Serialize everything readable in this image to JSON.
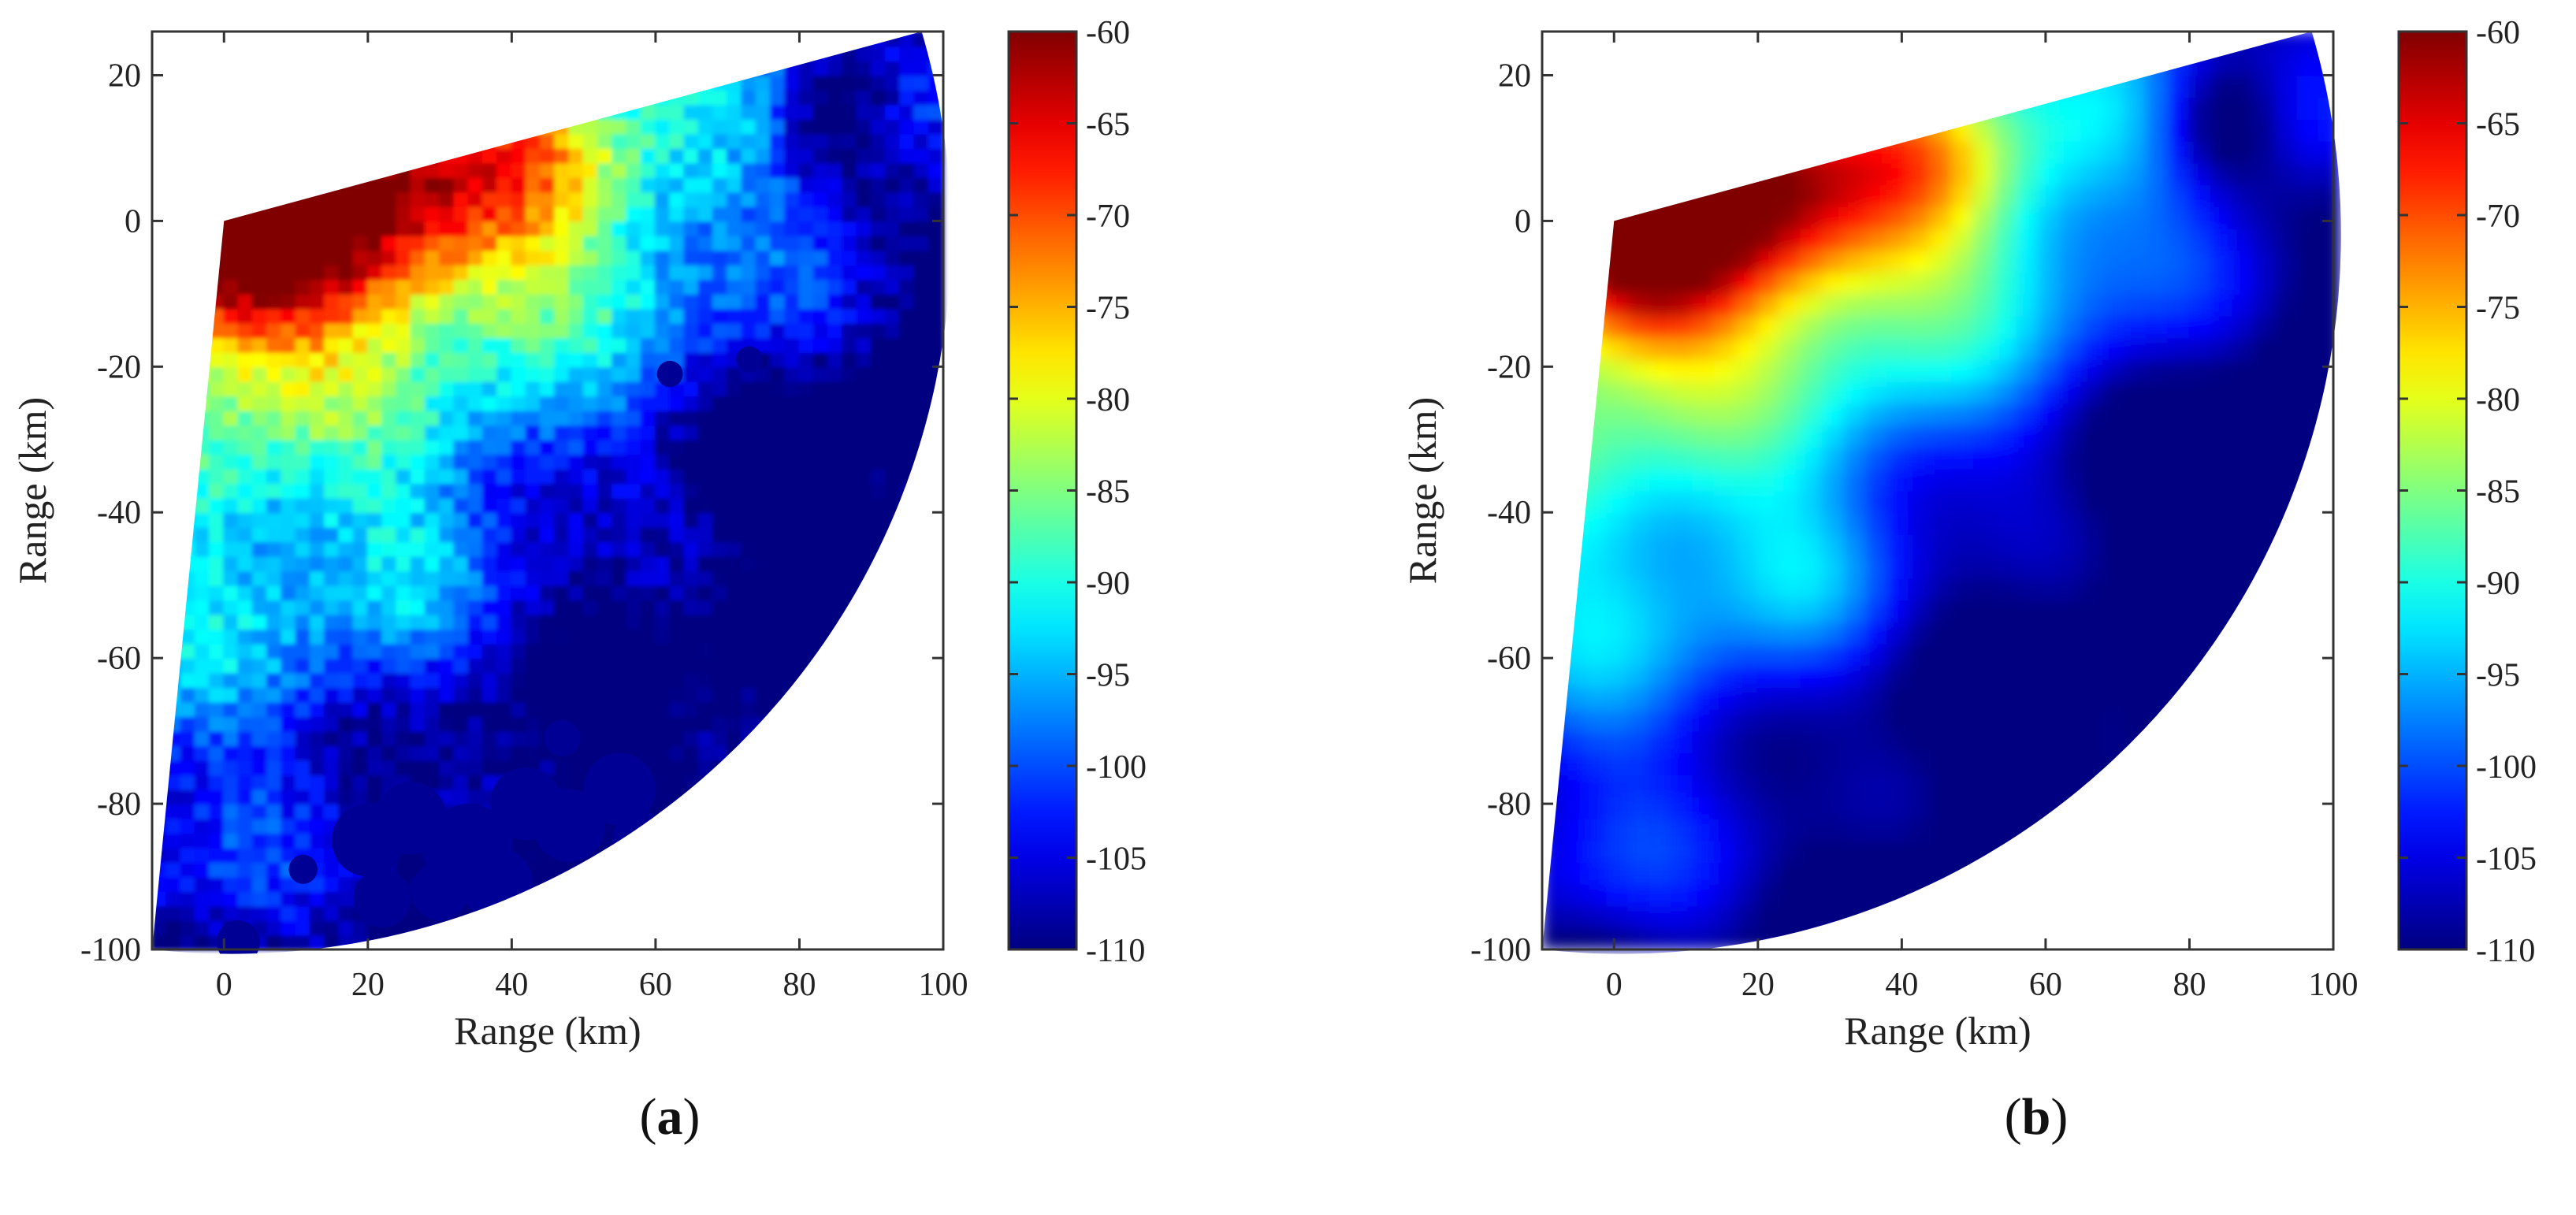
{
  "chart_data": [
    {
      "type": "heatmap",
      "panel_label": "a",
      "panel_caption": "(a)",
      "title": "",
      "xlabel": "Range (km)",
      "ylabel": "Range (km)",
      "xlim": [
        -10,
        100
      ],
      "ylim": [
        -100,
        26
      ],
      "xticks": [
        0,
        20,
        40,
        60,
        80,
        100
      ],
      "xtick_labels": [
        "0",
        "20",
        "40",
        "60",
        "80",
        "100"
      ],
      "yticks": [
        -100,
        -80,
        -60,
        -40,
        -20,
        0,
        20
      ],
      "ytick_labels": [
        "-100",
        "-80",
        "-60",
        "-40",
        "-20",
        "0",
        "20"
      ],
      "colorbar": {
        "min": -110,
        "max": -60,
        "ticks": [
          -60,
          -65,
          -70,
          -75,
          -80,
          -85,
          -90,
          -95,
          -100,
          -105,
          -110
        ],
        "tick_labels": [
          "-60",
          "-65",
          "-70",
          "-75",
          "-80",
          "-85",
          "-90",
          "-95",
          "-100",
          "-105",
          "-110"
        ],
        "colormap": "jet"
      },
      "sector": {
        "origin": [
          0,
          0
        ],
        "radius_km": 100,
        "edge_left": [
          -10,
          -100
        ],
        "edge_right": [
          97,
          26
        ]
      },
      "field_features": [
        {
          "region": "near origin",
          "level_db": -60
        },
        {
          "region": "northeast strip (20 to 40 km, 0 to 5 km)",
          "level_db": -70
        },
        {
          "region": "east upper band",
          "level_db": -82
        },
        {
          "region": "central",
          "level_db": -95
        },
        {
          "region": "southern interior",
          "level_db": -103
        },
        {
          "region": "low-value holes near (25 to 60 km, -90 to -75 km)",
          "level_db": -110
        }
      ]
    },
    {
      "type": "heatmap",
      "panel_label": "b",
      "panel_caption": "(b)",
      "title": "",
      "xlabel": "Range (km)",
      "ylabel": "Range (km)",
      "xlim": [
        -10,
        100
      ],
      "ylim": [
        -100,
        26
      ],
      "xticks": [
        0,
        20,
        40,
        60,
        80,
        100
      ],
      "xtick_labels": [
        "0",
        "20",
        "40",
        "60",
        "80",
        "100"
      ],
      "yticks": [
        -100,
        -80,
        -60,
        -40,
        -20,
        0,
        20
      ],
      "ytick_labels": [
        "-100",
        "-80",
        "-60",
        "-40",
        "-20",
        "0",
        "20"
      ],
      "colorbar": {
        "min": -110,
        "max": -60,
        "ticks": [
          -60,
          -65,
          -70,
          -75,
          -80,
          -85,
          -90,
          -95,
          -100,
          -105,
          -110
        ],
        "tick_labels": [
          "-60",
          "-65",
          "-70",
          "-75",
          "-80",
          "-85",
          "-90",
          "-95",
          "-100",
          "-105",
          "-110"
        ],
        "colormap": "jet"
      },
      "sector": {
        "origin": [
          0,
          0
        ],
        "radius_km": 100,
        "edge_left": [
          -10,
          -100
        ],
        "edge_right": [
          97,
          26
        ]
      },
      "field_features": [
        {
          "region": "near origin",
          "level_db": -60
        },
        {
          "region": "northeast strip (20 to 40 km, 0 to 5 km)",
          "level_db": -70
        },
        {
          "region": "east upper band",
          "level_db": -85
        },
        {
          "region": "central",
          "level_db": -95
        },
        {
          "region": "southern interior",
          "level_db": -102
        }
      ]
    }
  ]
}
